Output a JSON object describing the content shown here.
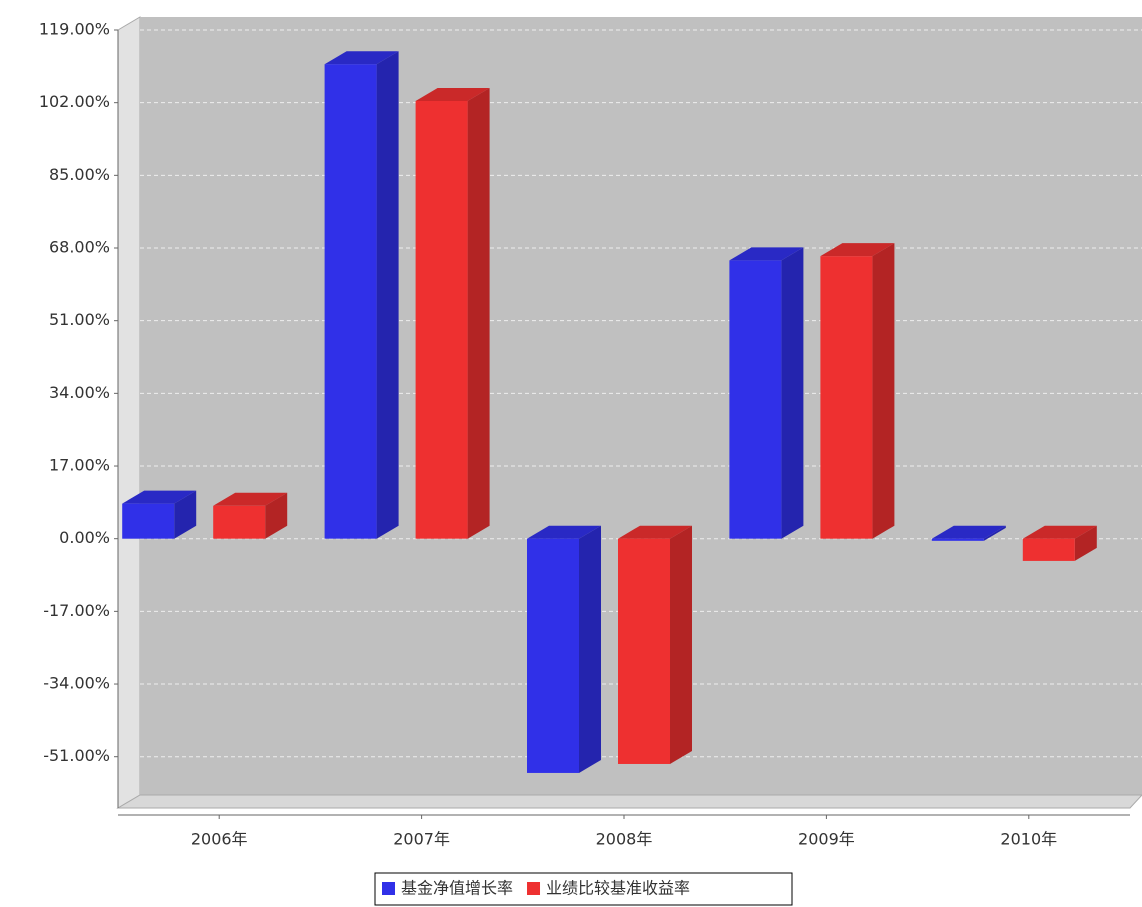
{
  "chart_data": {
    "type": "bar3d",
    "categories": [
      "2006年",
      "2007年",
      "2008年",
      "2009年",
      "2010年"
    ],
    "series": [
      {
        "name": "基金净值增长率",
        "color": "#3030e8",
        "values": [
          8.2,
          111.0,
          -54.8,
          65.1,
          -0.5
        ]
      },
      {
        "name": "业绩比较基准收益率",
        "color": "#ee3030",
        "values": [
          7.7,
          102.4,
          -52.7,
          66.1,
          -5.2
        ]
      }
    ],
    "ylim": [
      -63,
      119
    ],
    "yticks": [
      {
        "value": 119,
        "label": "119.00%"
      },
      {
        "value": 102,
        "label": "102.00%"
      },
      {
        "value": 85,
        "label": "85.00%"
      },
      {
        "value": 68,
        "label": "68.00%"
      },
      {
        "value": 51,
        "label": "51.00%"
      },
      {
        "value": 34,
        "label": "34.00%"
      },
      {
        "value": 17,
        "label": "17.00%"
      },
      {
        "value": 0,
        "label": "0.00%"
      },
      {
        "value": -17,
        "label": "-17.00%"
      },
      {
        "value": -34,
        "label": "-34.00%"
      },
      {
        "value": -51,
        "label": "-51.00%"
      }
    ],
    "grid": true
  }
}
